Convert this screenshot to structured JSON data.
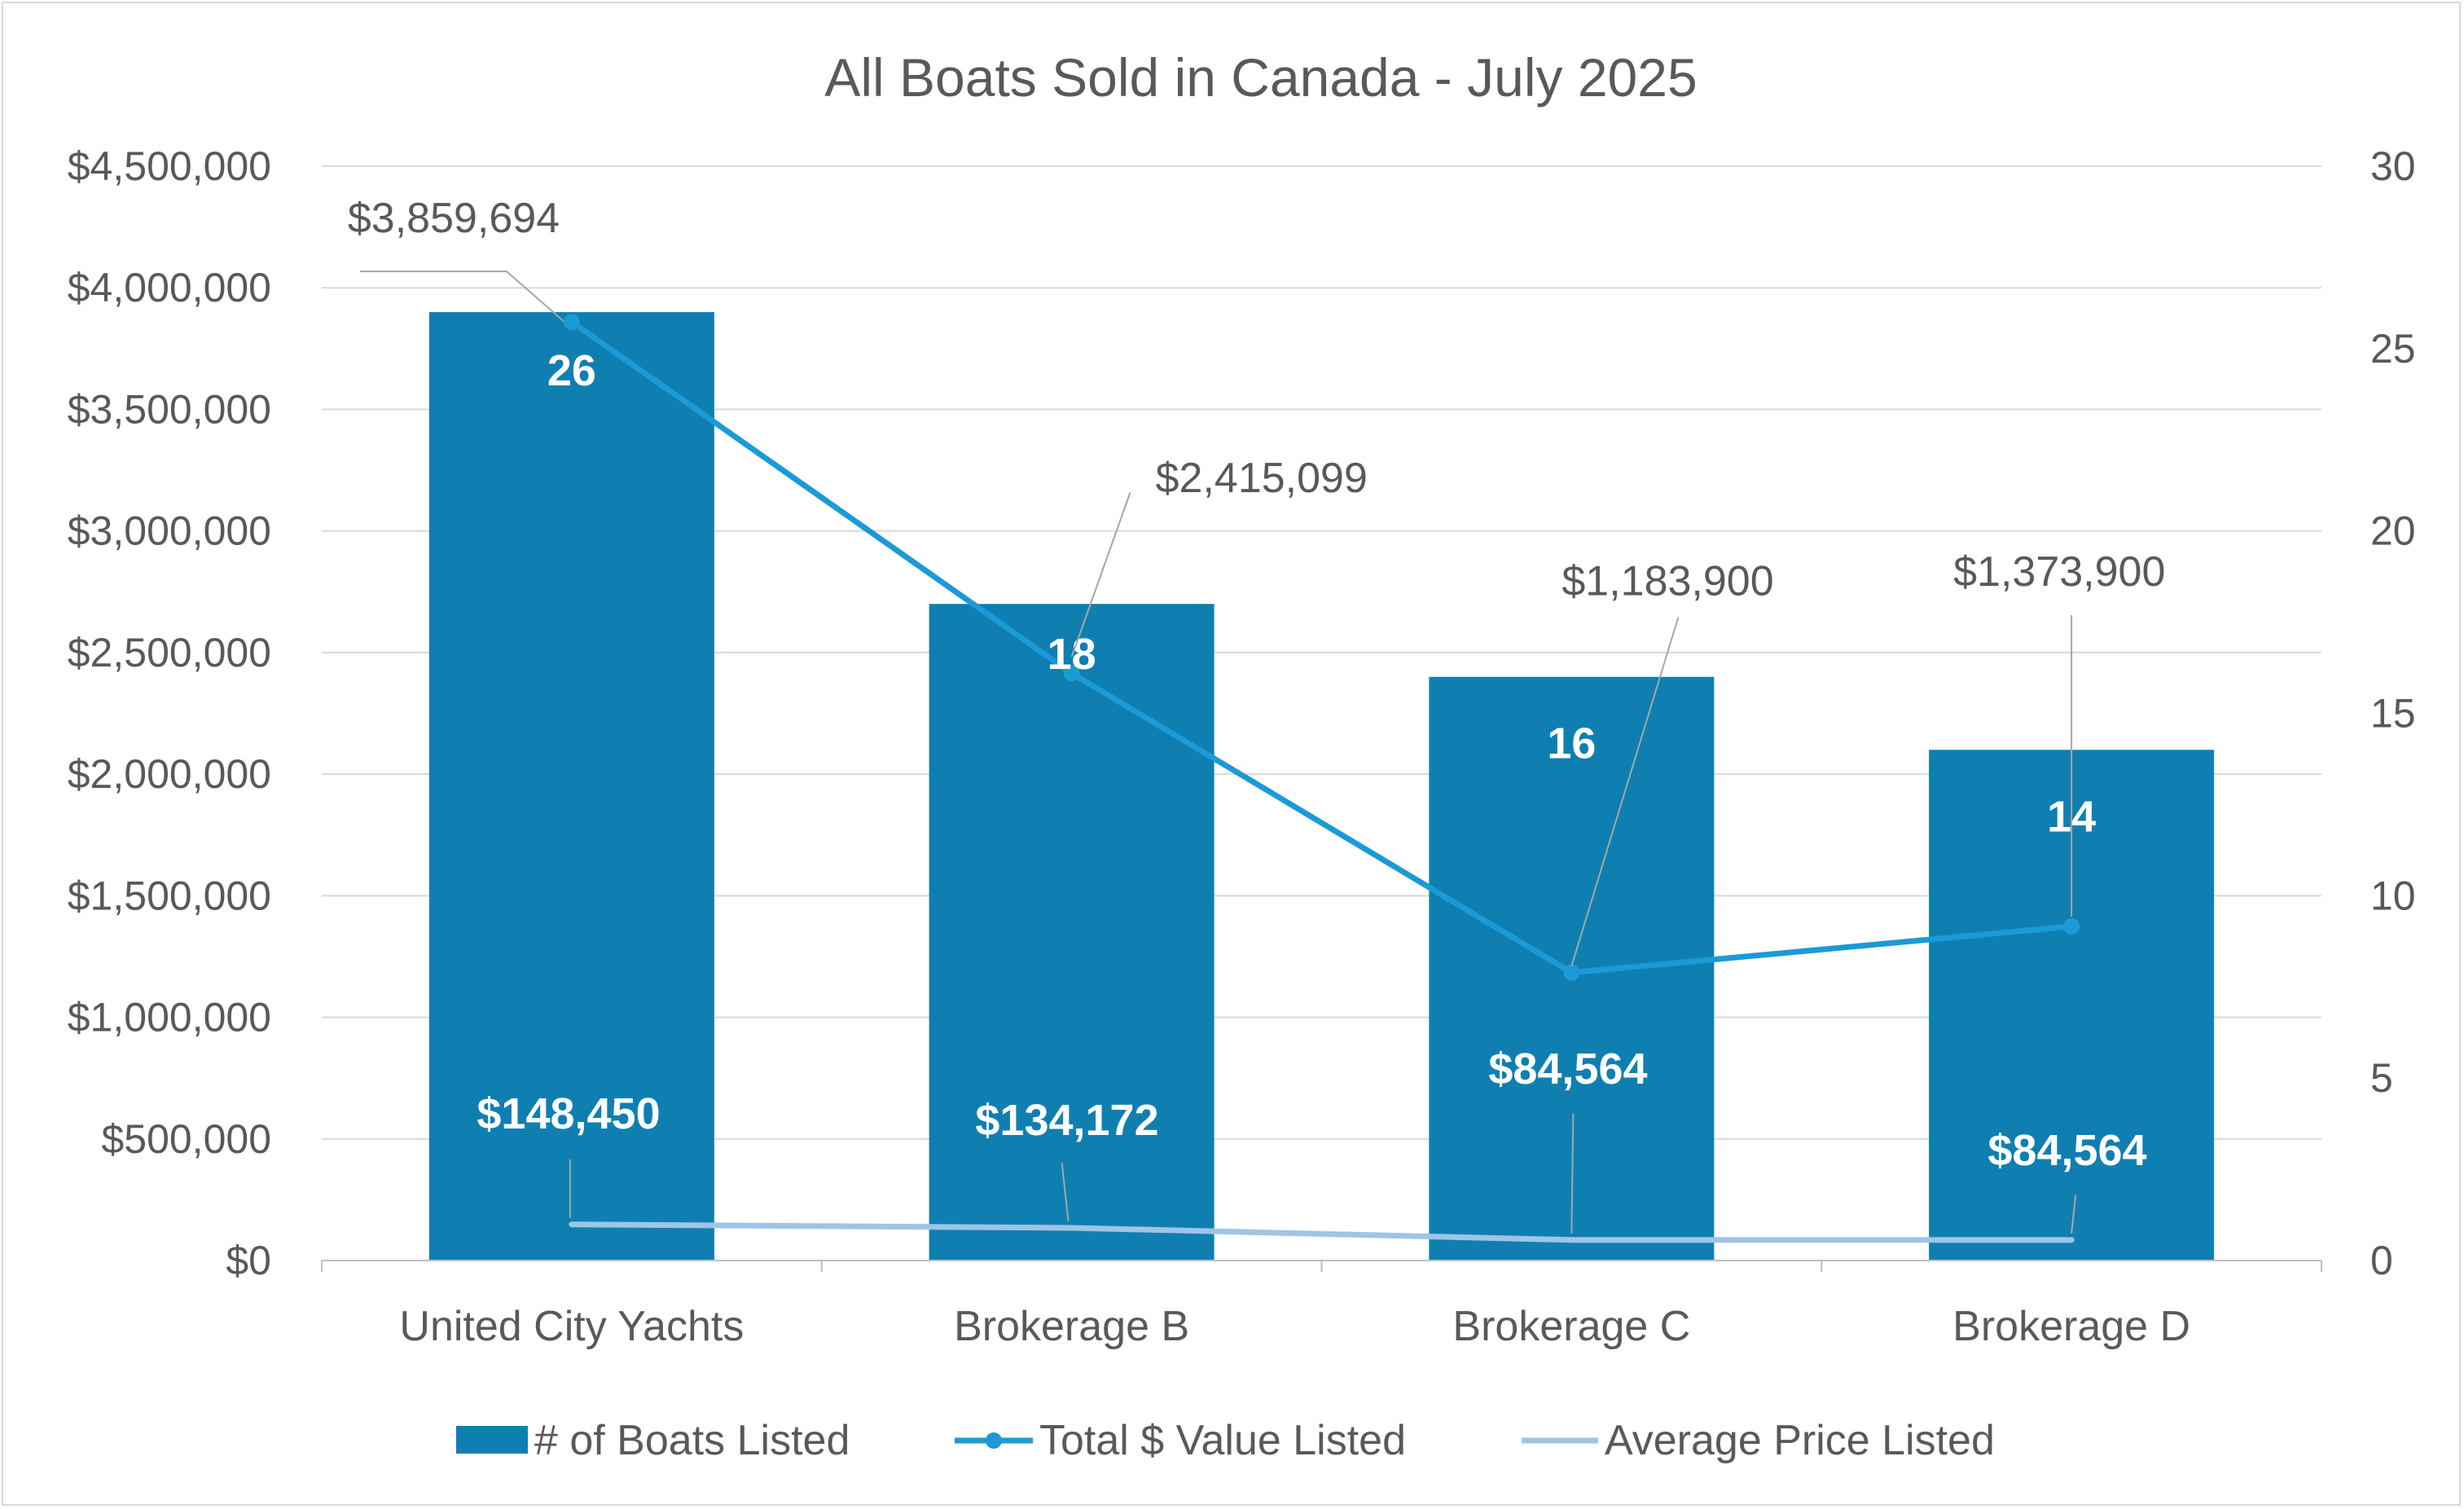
{
  "chart_data": {
    "type": "bar",
    "title": "All Boats Sold in Canada - July 2025",
    "categories": [
      "United City Yachts",
      "Brokerage B",
      "Brokerage C",
      "Brokerage D"
    ],
    "series": [
      {
        "name": "# of Boats Listed",
        "type": "bar",
        "axis": "secondary",
        "values": [
          26,
          18,
          16,
          14
        ],
        "labels": [
          "26",
          "18",
          "16",
          "14"
        ],
        "color": "#0f7fb1"
      },
      {
        "name": "Total $ Value Listed",
        "type": "line",
        "axis": "primary",
        "values": [
          3859694,
          2415099,
          1183900,
          1373900
        ],
        "labels": [
          "$3,859,694",
          "$2,415,099",
          "$1,183,900",
          "$1,373,900"
        ],
        "color": "#1b9ad6",
        "markers": true
      },
      {
        "name": "Average Price Listed",
        "type": "line",
        "axis": "primary",
        "values": [
          148450,
          134172,
          84564,
          84564
        ],
        "labels": [
          "$148,450",
          "$134,172",
          "$84,564",
          "$84,564"
        ],
        "color": "#9fc4e6",
        "markers": false
      }
    ],
    "y_primary": {
      "range": [
        0,
        4500000
      ],
      "ticks": [
        0,
        500000,
        1000000,
        1500000,
        2000000,
        2500000,
        3000000,
        3500000,
        4000000,
        4500000
      ],
      "tick_labels": [
        "$0",
        "$500,000",
        "$1,000,000",
        "$1,500,000",
        "$2,000,000",
        "$2,500,000",
        "$3,000,000",
        "$3,500,000",
        "$4,000,000",
        "$4,500,000"
      ]
    },
    "y_secondary": {
      "range": [
        0,
        30
      ],
      "ticks": [
        0,
        5,
        10,
        15,
        20,
        25,
        30
      ],
      "tick_labels": [
        "0",
        "5",
        "10",
        "15",
        "20",
        "25",
        "30"
      ]
    },
    "grid": true,
    "legend": "bottom",
    "colors": {
      "gridline": "#d9d9d9",
      "axis": "#bfbfbf",
      "text": "#595959",
      "leader": "#a6a6a6"
    }
  }
}
